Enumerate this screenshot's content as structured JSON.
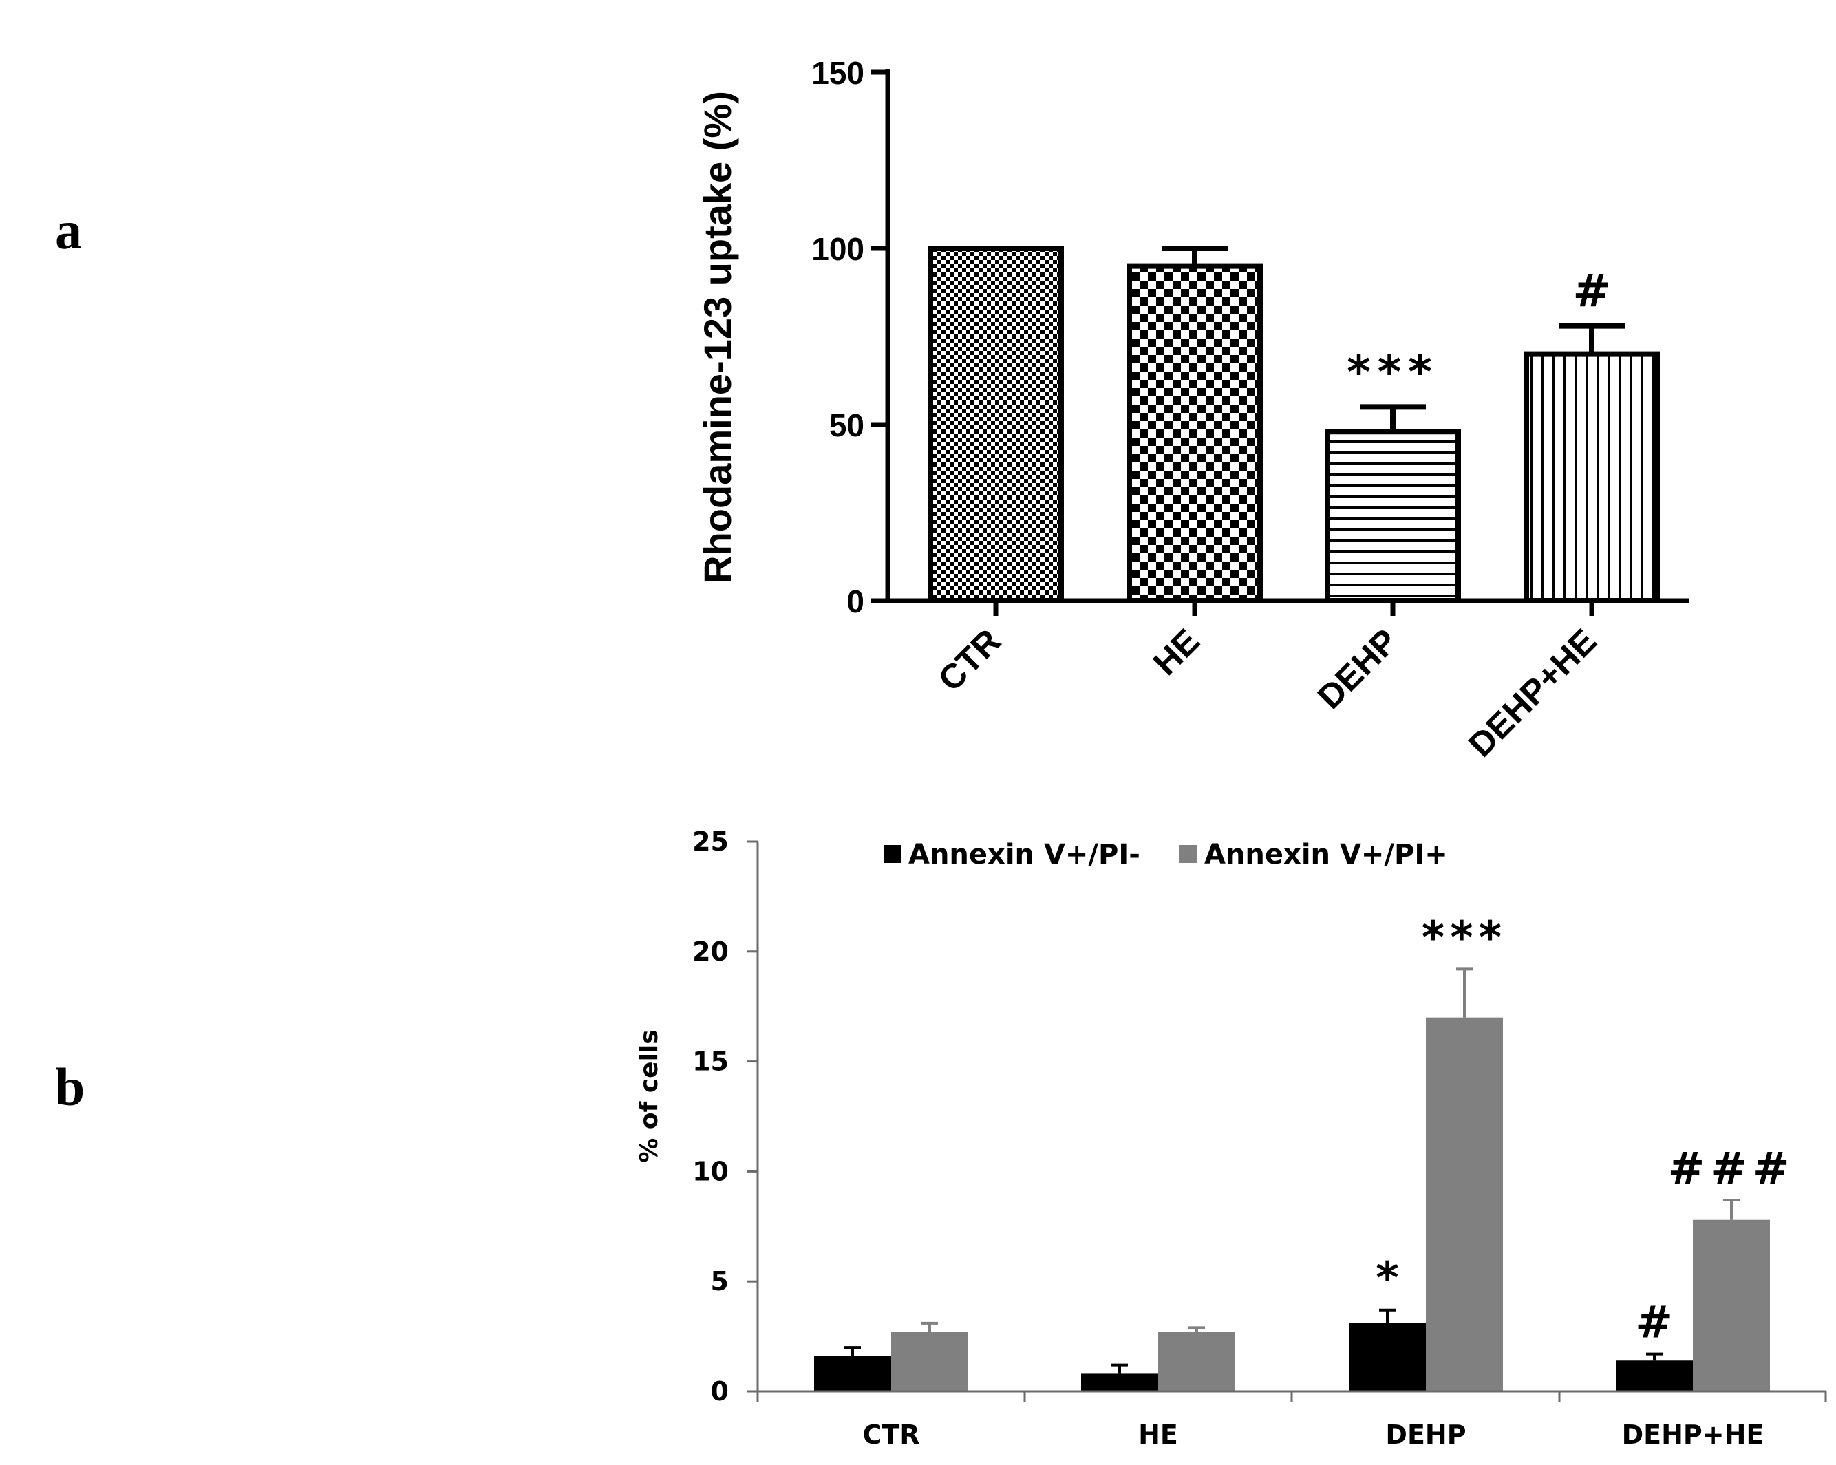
{
  "panels": {
    "a": "a",
    "b": "b"
  },
  "chart_data": [
    {
      "type": "bar",
      "title": "",
      "ylabel": "Rhodamine-123 uptake (%)",
      "xlabel": "",
      "categories": [
        "CTR",
        "HE",
        "DEHP",
        "DEHP+HE"
      ],
      "values": [
        100,
        95,
        48,
        70
      ],
      "errors": [
        0,
        5,
        7,
        8
      ],
      "annotations": [
        "",
        "",
        "***",
        "#"
      ],
      "patterns": [
        "fine-check",
        "coarse-check",
        "horizontal-lines",
        "vertical-lines"
      ],
      "yticks": [
        "0",
        "50",
        "100",
        "150"
      ],
      "ylim": [
        0,
        150
      ]
    },
    {
      "type": "bar",
      "title": "",
      "ylabel": "% of cells",
      "xlabel": "",
      "categories": [
        "CTR",
        "HE",
        "DEHP",
        "DEHP+HE"
      ],
      "series": [
        {
          "name": "Annexin V+/PI-",
          "color": "#000000",
          "values": [
            1.6,
            0.8,
            3.1,
            1.4
          ],
          "errors": [
            0.4,
            0.4,
            0.6,
            0.3
          ],
          "annotations": [
            "",
            "",
            "*",
            "#"
          ]
        },
        {
          "name": "Annexin V+/PI+",
          "color": "#808080",
          "values": [
            2.7,
            2.7,
            17.0,
            7.8
          ],
          "errors": [
            0.4,
            0.2,
            2.2,
            0.9
          ],
          "annotations": [
            "",
            "",
            "***",
            "###"
          ]
        }
      ],
      "yticks": [
        "0",
        "5",
        "10",
        "15",
        "20",
        "25"
      ],
      "ylim": [
        0,
        25
      ],
      "legend": "top"
    }
  ]
}
